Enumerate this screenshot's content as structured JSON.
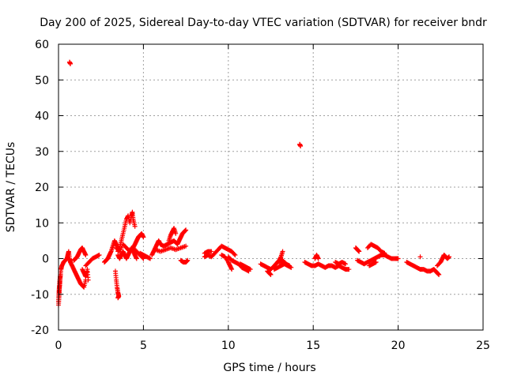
{
  "chart_data": {
    "type": "scatter",
    "title": "Day 200 of 2025, Sidereal Day-to-day VTEC variation (SDTVAR) for receiver bndr",
    "xlabel": "GPS time / hours",
    "ylabel": "SDTVAR / TECUs",
    "xlim": [
      0,
      25
    ],
    "ylim": [
      -20,
      60
    ],
    "xticks": [
      0,
      5,
      10,
      15,
      20,
      25
    ],
    "yticks": [
      -20,
      -10,
      0,
      10,
      20,
      30,
      40,
      50,
      60
    ],
    "xtick_labels": [
      "0",
      "5",
      "10",
      "15",
      "20",
      "25"
    ],
    "ytick_labels": [
      "-20",
      "-10",
      "0",
      "10",
      "20",
      "30",
      "40",
      "50",
      "60"
    ],
    "grid": true,
    "marker": "+",
    "series_color": "#ff0000",
    "series": [
      {
        "name": "SDTVAR",
        "tracks": [
          [
            [
              0.0,
              -13
            ],
            [
              0.03,
              -11
            ],
            [
              0.05,
              -9
            ],
            [
              0.08,
              -7
            ],
            [
              0.1,
              -5
            ],
            [
              0.15,
              -3
            ],
            [
              0.2,
              -2
            ],
            [
              0.3,
              -1
            ],
            [
              0.4,
              -0.5
            ],
            [
              0.5,
              0
            ],
            [
              0.55,
              1
            ],
            [
              0.6,
              2
            ],
            [
              0.65,
              0
            ],
            [
              0.7,
              -1
            ]
          ],
          [
            [
              0.0,
              -12
            ],
            [
              0.02,
              -10
            ],
            [
              0.04,
              -8.5
            ],
            [
              0.06,
              -7.5
            ],
            [
              0.08,
              -6
            ],
            [
              0.12,
              -4.5
            ]
          ],
          [
            [
              0.7,
              -1
            ],
            [
              0.8,
              -2
            ],
            [
              0.9,
              -3
            ],
            [
              1.0,
              -4
            ],
            [
              1.1,
              -5
            ],
            [
              1.2,
              -6
            ],
            [
              1.3,
              -7
            ],
            [
              1.4,
              -7.5
            ],
            [
              1.5,
              -8
            ],
            [
              1.6,
              -6
            ]
          ],
          [
            [
              0.9,
              -0.5
            ],
            [
              1.0,
              0
            ],
            [
              1.1,
              0.5
            ],
            [
              1.2,
              1.5
            ],
            [
              1.3,
              2.5
            ],
            [
              1.4,
              3
            ],
            [
              1.5,
              2
            ],
            [
              1.6,
              1
            ]
          ],
          [
            [
              1.4,
              -3
            ],
            [
              1.5,
              -4
            ],
            [
              1.6,
              -5
            ],
            [
              1.7,
              -3
            ],
            [
              1.75,
              -6
            ]
          ],
          [
            [
              1.6,
              -2
            ],
            [
              1.8,
              -1
            ],
            [
              2.0,
              0
            ],
            [
              2.2,
              0.5
            ],
            [
              2.4,
              1
            ]
          ],
          [
            [
              2.7,
              -1
            ],
            [
              2.8,
              -0.5
            ],
            [
              2.9,
              0
            ],
            [
              3.0,
              1
            ],
            [
              3.1,
              2
            ],
            [
              3.2,
              3.5
            ],
            [
              3.3,
              5
            ],
            [
              3.4,
              4
            ],
            [
              3.5,
              3
            ]
          ],
          [
            [
              3.35,
              -3.5
            ],
            [
              3.4,
              -6
            ],
            [
              3.45,
              -8
            ],
            [
              3.5,
              -9.5
            ],
            [
              3.55,
              -10.5
            ],
            [
              3.5,
              -11
            ]
          ],
          [
            [
              3.5,
              2
            ],
            [
              3.6,
              3
            ],
            [
              3.7,
              5
            ],
            [
              3.8,
              7
            ],
            [
              3.9,
              9
            ],
            [
              4.0,
              11
            ],
            [
              4.1,
              12
            ],
            [
              4.2,
              10
            ],
            [
              4.3,
              12
            ],
            [
              4.35,
              13
            ],
            [
              4.4,
              11
            ],
            [
              4.5,
              9
            ]
          ],
          [
            [
              3.5,
              1
            ],
            [
              3.6,
              0
            ],
            [
              3.7,
              1
            ],
            [
              3.8,
              2
            ],
            [
              3.9,
              1
            ],
            [
              4.0,
              0
            ],
            [
              4.1,
              1
            ],
            [
              4.2,
              2
            ],
            [
              4.3,
              3
            ],
            [
              4.4,
              2
            ],
            [
              4.5,
              1
            ],
            [
              4.6,
              0
            ]
          ],
          [
            [
              3.4,
              3
            ],
            [
              3.6,
              2
            ],
            [
              3.8,
              4
            ],
            [
              4.0,
              3
            ],
            [
              4.2,
              2
            ],
            [
              4.4,
              3
            ],
            [
              4.6,
              2
            ],
            [
              4.8,
              1
            ],
            [
              5.0,
              0
            ]
          ],
          [
            [
              4.4,
              3
            ],
            [
              4.5,
              4
            ],
            [
              4.6,
              5
            ],
            [
              4.7,
              6
            ],
            [
              4.8,
              6.5
            ],
            [
              4.9,
              7
            ],
            [
              5.0,
              6
            ]
          ],
          [
            [
              4.8,
              1.5
            ],
            [
              5.0,
              1
            ],
            [
              5.2,
              0.5
            ],
            [
              5.4,
              0
            ]
          ],
          [
            [
              5.5,
              1
            ],
            [
              5.6,
              2
            ],
            [
              5.7,
              3
            ],
            [
              5.8,
              4
            ],
            [
              5.9,
              5
            ],
            [
              6.0,
              4
            ],
            [
              6.2,
              3.5
            ],
            [
              6.4,
              4
            ],
            [
              6.6,
              4.5
            ],
            [
              6.8,
              5
            ],
            [
              7.0,
              4
            ],
            [
              7.1,
              5
            ],
            [
              7.2,
              6
            ],
            [
              7.3,
              7
            ],
            [
              7.4,
              7.5
            ],
            [
              7.5,
              8
            ]
          ],
          [
            [
              6.5,
              5
            ],
            [
              6.6,
              6.5
            ],
            [
              6.7,
              7.5
            ],
            [
              6.8,
              8.5
            ],
            [
              6.9,
              7
            ]
          ],
          [
            [
              5.7,
              2.5
            ],
            [
              6.0,
              2
            ],
            [
              6.3,
              2.5
            ],
            [
              6.6,
              3
            ],
            [
              6.9,
              2.5
            ],
            [
              7.2,
              3
            ],
            [
              7.5,
              3.5
            ]
          ],
          [
            [
              7.2,
              -0.5
            ],
            [
              7.35,
              -1
            ],
            [
              7.5,
              -1
            ],
            [
              7.6,
              -0.5
            ]
          ],
          [
            [
              8.6,
              0.5
            ],
            [
              8.8,
              1
            ],
            [
              9.0,
              0.5
            ],
            [
              9.2,
              1.5
            ],
            [
              9.4,
              2.5
            ],
            [
              9.6,
              3.5
            ],
            [
              9.8,
              3
            ],
            [
              10.0,
              2.5
            ],
            [
              10.2,
              2
            ],
            [
              10.4,
              1
            ]
          ],
          [
            [
              8.6,
              1.5
            ],
            [
              8.8,
              2
            ],
            [
              9.0,
              2
            ]
          ],
          [
            [
              9.6,
              1
            ],
            [
              9.8,
              0.5
            ],
            [
              10.0,
              -1
            ],
            [
              10.1,
              -2
            ],
            [
              10.2,
              -3
            ]
          ],
          [
            [
              10.0,
              0.5
            ],
            [
              10.2,
              -0.5
            ],
            [
              10.4,
              -1
            ],
            [
              10.6,
              -1.5
            ],
            [
              10.8,
              -2.5
            ],
            [
              11.0,
              -3
            ],
            [
              11.2,
              -3.5
            ]
          ],
          [
            [
              10.7,
              -1.5
            ],
            [
              10.9,
              -2
            ],
            [
              11.1,
              -2.5
            ],
            [
              11.3,
              -3
            ]
          ],
          [
            [
              11.9,
              -1.5
            ],
            [
              12.1,
              -2
            ],
            [
              12.3,
              -2.5
            ],
            [
              12.5,
              -3
            ],
            [
              12.7,
              -2
            ],
            [
              12.9,
              -1
            ],
            [
              13.0,
              -0.5
            ],
            [
              13.1,
              0.5
            ],
            [
              13.2,
              2
            ]
          ],
          [
            [
              12.3,
              -3.5
            ],
            [
              12.4,
              -4
            ],
            [
              12.5,
              -4.5
            ]
          ],
          [
            [
              12.7,
              -3
            ],
            [
              12.9,
              -2.5
            ],
            [
              13.1,
              -2
            ],
            [
              13.3,
              -1.5
            ],
            [
              13.5,
              -2
            ],
            [
              13.7,
              -2.5
            ]
          ],
          [
            [
              13.0,
              -1
            ],
            [
              13.2,
              -0.5
            ],
            [
              13.4,
              -1.5
            ],
            [
              13.6,
              -2
            ]
          ],
          [
            [
              14.2,
              32
            ],
            [
              14.25,
              31.5
            ]
          ],
          [
            [
              14.5,
              -1
            ],
            [
              14.7,
              -1.5
            ],
            [
              14.9,
              -2
            ],
            [
              15.1,
              -2
            ],
            [
              15.3,
              -1.5
            ],
            [
              15.5,
              -2
            ],
            [
              15.7,
              -2.5
            ],
            [
              15.9,
              -2
            ],
            [
              16.1,
              -2
            ],
            [
              16.3,
              -2.5
            ],
            [
              16.5,
              -2
            ],
            [
              16.7,
              -2.5
            ],
            [
              16.9,
              -3
            ],
            [
              17.1,
              -3
            ]
          ],
          [
            [
              15.1,
              0
            ],
            [
              15.2,
              1
            ],
            [
              15.3,
              0
            ]
          ],
          [
            [
              16.3,
              -1
            ],
            [
              16.5,
              -1.5
            ],
            [
              16.7,
              -1
            ],
            [
              16.9,
              -1.5
            ]
          ],
          [
            [
              17.5,
              3
            ],
            [
              17.6,
              2.5
            ],
            [
              17.7,
              2
            ]
          ],
          [
            [
              17.6,
              -0.5
            ],
            [
              17.8,
              -1
            ],
            [
              18.0,
              -1.5
            ],
            [
              18.2,
              -1
            ],
            [
              18.4,
              -0.5
            ],
            [
              18.6,
              0
            ],
            [
              18.8,
              0.5
            ],
            [
              19.0,
              1
            ],
            [
              19.2,
              1
            ],
            [
              19.4,
              0.5
            ],
            [
              19.6,
              0
            ],
            [
              19.8,
              0
            ],
            [
              20.0,
              0
            ]
          ],
          [
            [
              18.2,
              3
            ],
            [
              18.4,
              4
            ],
            [
              18.6,
              3.5
            ],
            [
              18.8,
              3
            ],
            [
              19.0,
              2
            ],
            [
              19.2,
              1.5
            ]
          ],
          [
            [
              18.3,
              -2
            ],
            [
              18.5,
              -1.5
            ],
            [
              18.7,
              -1
            ]
          ],
          [
            [
              20.5,
              -1
            ],
            [
              20.7,
              -1.5
            ],
            [
              20.9,
              -2
            ],
            [
              21.1,
              -2.5
            ],
            [
              21.3,
              -3
            ],
            [
              21.5,
              -3
            ],
            [
              21.7,
              -3.5
            ],
            [
              21.9,
              -3.5
            ],
            [
              22.1,
              -3
            ],
            [
              22.2,
              -3.5
            ],
            [
              22.3,
              -4
            ],
            [
              22.4,
              -4.5
            ]
          ],
          [
            [
              21.3,
              0.5
            ]
          ],
          [
            [
              22.3,
              -2
            ],
            [
              22.5,
              -1
            ],
            [
              22.6,
              0
            ],
            [
              22.7,
              1
            ],
            [
              22.8,
              0.5
            ],
            [
              22.9,
              0
            ],
            [
              23.0,
              0.5
            ]
          ],
          [
            [
              0.65,
              55
            ],
            [
              0.7,
              54.5
            ]
          ]
        ]
      }
    ]
  }
}
